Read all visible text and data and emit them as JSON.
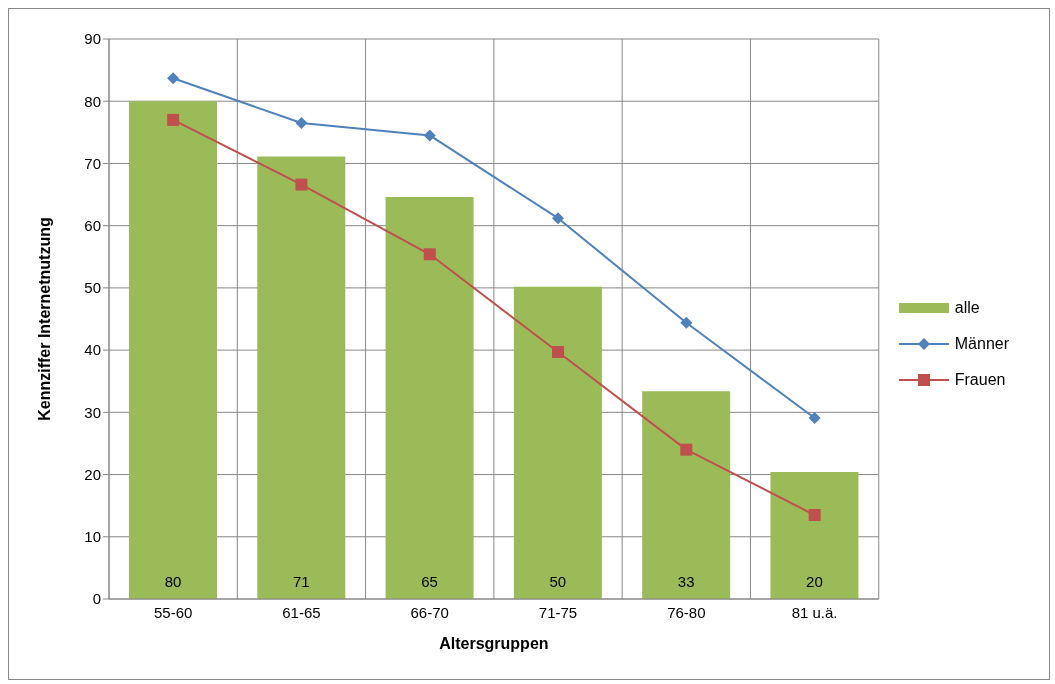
{
  "chart_data": {
    "type": "bar",
    "xlabel": "Altersgruppen",
    "ylabel": "Kennziffer Internetnutzung",
    "categories": [
      "55-60",
      "61-65",
      "66-70",
      "71-75",
      "76-80",
      "81 u.ä."
    ],
    "series": [
      {
        "name": "alle",
        "color": "#9bbb59",
        "values": [
          80,
          71.1,
          64.6,
          50.2,
          33.4,
          20.4
        ],
        "value_labels": [
          "80",
          "71",
          "65",
          "50",
          "33",
          "20"
        ]
      },
      {
        "name": "Männer",
        "type": "line",
        "color": "#4f81bd",
        "marker": "diamond",
        "values": [
          83.7,
          76.5,
          74.5,
          61.2,
          44.4,
          29.1
        ]
      },
      {
        "name": "Frauen",
        "type": "line",
        "color": "#c0504d",
        "marker": "square",
        "values": [
          77,
          66.6,
          55.4,
          39.7,
          24,
          13.5
        ]
      }
    ],
    "ylim": [
      0,
      90
    ],
    "yticks": [
      0,
      10,
      20,
      30,
      40,
      50,
      60,
      70,
      80,
      90
    ],
    "grid": true,
    "legend": "right"
  }
}
